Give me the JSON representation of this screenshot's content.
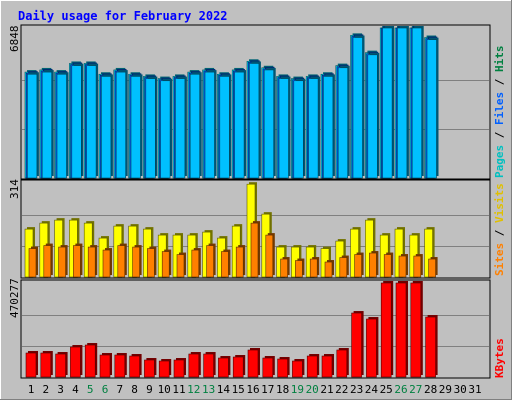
{
  "chart_data": {
    "type": "bar",
    "title": "Daily usage for February 2022",
    "days": [
      "1",
      "2",
      "3",
      "4",
      "5",
      "6",
      "7",
      "8",
      "9",
      "10",
      "11",
      "12",
      "13",
      "14",
      "15",
      "16",
      "17",
      "18",
      "19",
      "20",
      "21",
      "22",
      "23",
      "24",
      "25",
      "26",
      "27",
      "28",
      "29",
      "30",
      "31"
    ],
    "weekend_days": [
      "5",
      "6",
      "12",
      "13",
      "19",
      "20",
      "26",
      "27"
    ],
    "panels": [
      {
        "id": "hits_files_pages",
        "ymax_label": "6848",
        "ymax": 6848,
        "right_labels": [
          "Pages",
          "Files",
          "Hits"
        ],
        "series": [
          {
            "name": "Hits",
            "values": [
              4900,
              5000,
              4900,
              5300,
              5300,
              4800,
              5000,
              4800,
              4700,
              4600,
              4700,
              4900,
              5000,
              4800,
              5000,
              5400,
              5100,
              4700,
              4600,
              4700,
              4800,
              5200,
              6600,
              5800,
              7900,
              8000,
              7900,
              6500
            ]
          },
          {
            "name": "Files",
            "values": [
              4850,
              4950,
              4850,
              5250,
              5250,
              4750,
              4950,
              4750,
              4650,
              4550,
              4650,
              4850,
              4950,
              4750,
              4950,
              5350,
              5050,
              4650,
              4550,
              4650,
              4750,
              5150,
              6550,
              5750,
              7850,
              7950,
              7850,
              6450
            ]
          },
          {
            "name": "Pages",
            "values": [
              4800,
              4900,
              4800,
              5200,
              5200,
              4700,
              4900,
              4700,
              4600,
              4500,
              4600,
              4800,
              4900,
              4700,
              4900,
              5300,
              5000,
              4600,
              4500,
              4600,
              4700,
              5100,
              6500,
              5700,
              7800,
              7900,
              7800,
              6400
            ]
          }
        ]
      },
      {
        "id": "visits_sites",
        "ymax_label": "314",
        "ymax": 314,
        "right_labels": [
          "Sites",
          "Visits"
        ],
        "series": [
          {
            "name": "Visits",
            "values": [
              160,
              180,
              190,
              190,
              180,
              130,
              170,
              170,
              160,
              140,
              140,
              140,
              150,
              130,
              170,
              310,
              210,
              100,
              100,
              100,
              95,
              120,
              160,
              190,
              140,
              160,
              140,
              160
            ]
          },
          {
            "name": "Sites",
            "values": [
              95,
              105,
              100,
              105,
              100,
              90,
              105,
              100,
              95,
              85,
              75,
              90,
              105,
              85,
              100,
              180,
              140,
              60,
              55,
              60,
              50,
              65,
              75,
              80,
              75,
              70,
              70,
              60
            ]
          }
        ]
      },
      {
        "id": "kbytes",
        "ymax_label": "470277",
        "ymax": 470277,
        "right_labels": [
          "KBytes"
        ],
        "series": [
          {
            "name": "KBytes",
            "values": [
              120000,
              120000,
              115000,
              150000,
              160000,
              110000,
              110000,
              105000,
              85000,
              80000,
              85000,
              115000,
              115000,
              95000,
              100000,
              135000,
              95000,
              90000,
              80000,
              105000,
              105000,
              135000,
              320000,
              290000,
              530000,
              530000,
              530000,
              300000
            ]
          }
        ]
      }
    ],
    "colors": {
      "hits": "#00ddff",
      "files": "#0060ff",
      "pages": "#00c0ff",
      "visits": "#ffff00",
      "sites": "#ff8000",
      "kbytes": "#ff0000",
      "title": "#0000ff",
      "plot_bg": "#c0c0c0",
      "weekend_label": "#008040",
      "pages_label": "#00c0c0",
      "files_label": "#0060ff",
      "hits_label": "#008040",
      "sites_label": "#ff8000",
      "visits_label": "#e0c000",
      "kbytes_label": "#ff0000"
    }
  }
}
